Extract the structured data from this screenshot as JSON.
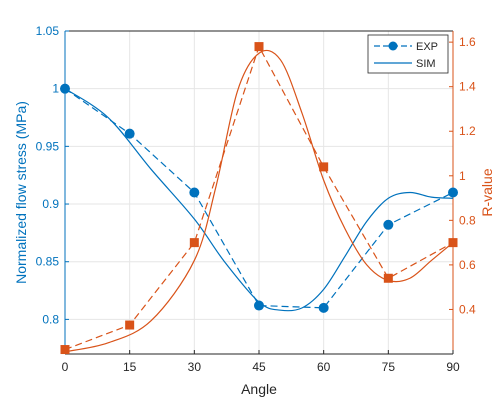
{
  "chart_data": {
    "type": "line",
    "xlabel": "Angle",
    "ylabel_left": "Normalized flow stress (MPa)",
    "ylabel_right": "R-value",
    "xlim": [
      0,
      90
    ],
    "ylim_left": [
      0.77,
      1.05
    ],
    "ylim_right": [
      0.2,
      1.65
    ],
    "xticks": [
      0,
      15,
      30,
      45,
      60,
      75,
      90
    ],
    "yticks_left": [
      0.8,
      0.85,
      0.9,
      0.95,
      1,
      1.05
    ],
    "yticks_right": [
      0.4,
      0.6,
      0.8,
      1,
      1.2,
      1.4,
      1.6
    ],
    "grid": true,
    "legend_position": "top-right",
    "legend": [
      {
        "label": "EXP",
        "style": "dashed-circle"
      },
      {
        "label": "SIM",
        "style": "solid"
      }
    ],
    "colors": {
      "left_axis": "#0072BD",
      "right_axis": "#D95319"
    },
    "series": [
      {
        "axis": "left",
        "kind": "EXP",
        "x": [
          0,
          15,
          30,
          45,
          60,
          75,
          90
        ],
        "y": [
          1.0,
          0.961,
          0.91,
          0.812,
          0.81,
          0.882,
          0.91
        ]
      },
      {
        "axis": "left",
        "kind": "SIM",
        "x": [
          0,
          10,
          20,
          30,
          37,
          45,
          50,
          55,
          60,
          65,
          70,
          75,
          80,
          85,
          90
        ],
        "y": [
          1.0,
          0.975,
          0.93,
          0.887,
          0.85,
          0.815,
          0.808,
          0.81,
          0.826,
          0.855,
          0.885,
          0.905,
          0.91,
          0.906,
          0.905
        ]
      },
      {
        "axis": "right",
        "kind": "EXP",
        "x": [
          0,
          15,
          30,
          45,
          60,
          75,
          90
        ],
        "y": [
          0.22,
          0.33,
          0.7,
          1.58,
          1.04,
          0.54,
          0.7
        ]
      },
      {
        "axis": "right",
        "kind": "SIM",
        "x": [
          0,
          10,
          20,
          30,
          35,
          40,
          45,
          50,
          55,
          60,
          65,
          70,
          75,
          80,
          85,
          90
        ],
        "y": [
          0.21,
          0.25,
          0.35,
          0.62,
          0.95,
          1.38,
          1.55,
          1.52,
          1.28,
          0.98,
          0.76,
          0.6,
          0.53,
          0.54,
          0.62,
          0.7
        ]
      }
    ]
  }
}
